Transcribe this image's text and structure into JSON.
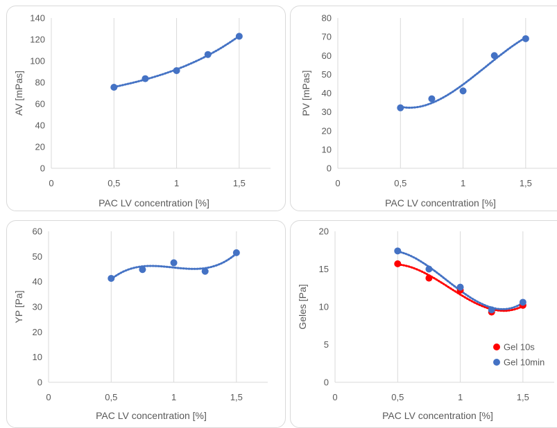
{
  "colors": {
    "blue": "#4472c4",
    "red": "#ff0000",
    "grid": "#d9d9d9",
    "text": "#595959"
  },
  "chart_data": [
    {
      "type": "scatter",
      "title": "",
      "xlabel": "PAC LV concentration [%]",
      "ylabel": "AV [mPas]",
      "xlim": [
        0,
        1.75
      ],
      "ylim": [
        0,
        140
      ],
      "xticks": [
        0,
        0.5,
        1,
        1.5
      ],
      "xtick_labels": [
        "0",
        "0,5",
        "1",
        "1,5"
      ],
      "yticks": [
        0,
        20,
        40,
        60,
        80,
        100,
        120,
        140
      ],
      "ytick_labels": [
        "0",
        "20",
        "40",
        "60",
        "80",
        "100",
        "120",
        "140"
      ],
      "grid": "vertical",
      "trendline": "polynomial dotted",
      "series": [
        {
          "x": [
            0.5,
            0.75,
            1,
            1.25,
            1.5
          ],
          "y": [
            75.5,
            83.5,
            91,
            106,
            123
          ],
          "color": "#4472c4"
        }
      ]
    },
    {
      "type": "scatter",
      "title": "",
      "xlabel": "PAC LV concentration [%]",
      "ylabel": "PV [mPas]",
      "xlim": [
        0,
        1.75
      ],
      "ylim": [
        0,
        80
      ],
      "xticks": [
        0,
        0.5,
        1,
        1.5
      ],
      "xtick_labels": [
        "0",
        "0,5",
        "1",
        "1,5"
      ],
      "yticks": [
        0,
        10,
        20,
        30,
        40,
        50,
        60,
        70,
        80
      ],
      "ytick_labels": [
        "0",
        "10",
        "20",
        "30",
        "40",
        "50",
        "60",
        "70",
        "80"
      ],
      "grid": "vertical",
      "trendline": "polynomial dotted",
      "series": [
        {
          "x": [
            0.5,
            0.75,
            1,
            1.25,
            1.5
          ],
          "y": [
            32.2,
            37,
            41.2,
            60,
            69
          ],
          "color": "#4472c4"
        }
      ]
    },
    {
      "type": "scatter",
      "title": "",
      "xlabel": "PAC LV concentration [%]",
      "ylabel": "YP [Pa]",
      "xlim": [
        0,
        1.75
      ],
      "ylim": [
        0,
        60
      ],
      "xticks": [
        0,
        0.5,
        1,
        1.5
      ],
      "xtick_labels": [
        "0",
        "0,5",
        "1",
        "1,5"
      ],
      "yticks": [
        0,
        10,
        20,
        30,
        40,
        50,
        60
      ],
      "ytick_labels": [
        "0",
        "10",
        "20",
        "30",
        "40",
        "50",
        "60"
      ],
      "grid": "vertical",
      "trendline": "polynomial dotted",
      "series": [
        {
          "x": [
            0.5,
            0.75,
            1,
            1.25,
            1.5
          ],
          "y": [
            41.3,
            44.8,
            47.5,
            44.1,
            51.5
          ],
          "color": "#4472c4"
        }
      ]
    },
    {
      "type": "scatter",
      "title": "",
      "xlabel": "PAC LV concentration [%]",
      "ylabel": "Geles [Pa]",
      "xlim": [
        0,
        1.75
      ],
      "ylim": [
        0,
        20
      ],
      "xticks": [
        0,
        0.5,
        1,
        1.5
      ],
      "xtick_labels": [
        "0",
        "0,5",
        "1",
        "1,5"
      ],
      "yticks": [
        0,
        5,
        10,
        15,
        20
      ],
      "ytick_labels": [
        "0",
        "5",
        "10",
        "15",
        "20"
      ],
      "grid": "vertical",
      "trendline": "polynomial dotted",
      "legend": "bottom-right",
      "series": [
        {
          "name": "Gel 10s",
          "x": [
            0.5,
            0.75,
            1,
            1.25,
            1.5
          ],
          "y": [
            15.7,
            13.8,
            12.2,
            9.3,
            10.2
          ],
          "color": "#ff0000"
        },
        {
          "name": "Gel 10min",
          "x": [
            0.5,
            0.75,
            1,
            1.25,
            1.5
          ],
          "y": [
            17.4,
            15.0,
            12.6,
            9.6,
            10.6
          ],
          "color": "#4472c4"
        }
      ]
    }
  ]
}
